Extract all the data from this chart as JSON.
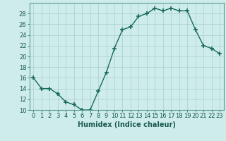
{
  "x": [
    0,
    1,
    2,
    3,
    4,
    5,
    6,
    7,
    8,
    9,
    10,
    11,
    12,
    13,
    14,
    15,
    16,
    17,
    18,
    19,
    20,
    21,
    22,
    23
  ],
  "y": [
    16,
    14,
    14,
    13,
    11.5,
    11,
    10,
    10,
    13.5,
    17,
    21.5,
    25,
    25.5,
    27.5,
    28,
    29,
    28.5,
    29,
    28.5,
    28.5,
    25,
    22,
    21.5,
    20.5
  ],
  "xlabel": "Humidex (Indice chaleur)",
  "xlim": [
    -0.5,
    23.5
  ],
  "ylim": [
    10,
    30
  ],
  "yticks": [
    10,
    12,
    14,
    16,
    18,
    20,
    22,
    24,
    26,
    28
  ],
  "xticks": [
    0,
    1,
    2,
    3,
    4,
    5,
    6,
    7,
    8,
    9,
    10,
    11,
    12,
    13,
    14,
    15,
    16,
    17,
    18,
    19,
    20,
    21,
    22,
    23
  ],
  "line_color": "#1a6b5a",
  "marker": "+",
  "marker_size": 5,
  "marker_lw": 1.2,
  "line_width": 1.0,
  "bg_color": "#ceecea",
  "grid_color": "#aed4d1",
  "axis_fontsize": 7,
  "tick_fontsize": 6,
  "xlabel_fontsize": 7
}
